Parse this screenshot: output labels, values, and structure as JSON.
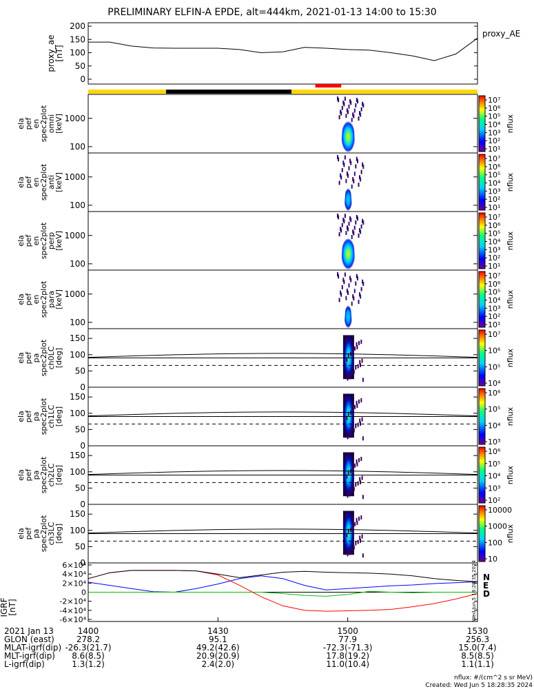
{
  "title": "PRELIMINARY ELFIN-A EPDE, alt=444km, 2021-01-13 14:00 to 15:30",
  "colors": {
    "sun_bar": "#ffd700",
    "shadow_bar": "#000000",
    "science_zone": "#ff0000",
    "bx": "#0000ff",
    "by": "#00c000",
    "bz": "#ff0000",
    "btot": "#000000"
  },
  "chart_data": [
    {
      "type": "line",
      "name": "proxy_ae",
      "ylabel": [
        "proxy_ae",
        "[nT]"
      ],
      "ylim": [
        0,
        200
      ],
      "yticks": [
        "0",
        "50",
        "100",
        "150",
        "200"
      ],
      "yticks_values": [
        0,
        50,
        100,
        150,
        200
      ],
      "legend": "proxy_AE",
      "x_minutes": [
        0,
        5,
        10,
        15,
        20,
        25,
        30,
        35,
        40,
        45,
        50,
        55,
        60,
        65,
        70,
        75,
        80,
        85,
        90
      ],
      "values": [
        140,
        140,
        125,
        118,
        117,
        117,
        117,
        112,
        100,
        103,
        120,
        117,
        112,
        110,
        100,
        88,
        70,
        95,
        155
      ]
    },
    {
      "type": "heatmap",
      "name": "omni",
      "ylabel": [
        "ela",
        "pef",
        "en",
        "spec2plot",
        "omni",
        "[keV]"
      ],
      "yticks": [
        "100",
        "1000"
      ],
      "colorbar_ticks": [
        "10⁷",
        "10⁶",
        "10⁵",
        "10⁴",
        "10³",
        "10²",
        "10¹"
      ],
      "colorbar_label": "nflux",
      "burst": {
        "t_start": 57.5,
        "t_end": 63.5,
        "peak": "1×10⁶",
        "energy_keV": [
          60,
          7000
        ]
      }
    },
    {
      "type": "heatmap",
      "name": "anti",
      "ylabel": [
        "ela",
        "pef",
        "en",
        "spec2plot",
        "anti",
        "[keV]"
      ],
      "yticks": [
        "100",
        "1000"
      ],
      "colorbar_ticks": [
        "10⁷",
        "10⁶",
        "10⁵",
        "10⁴",
        "10³",
        "10²",
        "10¹"
      ],
      "colorbar_label": "nflux",
      "burst": {
        "t_start": 57.5,
        "t_end": 63.5,
        "peak": "1×10⁵",
        "energy_keV": [
          60,
          7000
        ]
      }
    },
    {
      "type": "heatmap",
      "name": "perp",
      "ylabel": [
        "ela",
        "pef",
        "en",
        "spec2plot",
        "perp",
        "[keV]"
      ],
      "yticks": [
        "100",
        "1000"
      ],
      "colorbar_ticks": [
        "10⁷",
        "10⁶",
        "10⁵",
        "10⁴",
        "10³",
        "10²",
        "10¹"
      ],
      "colorbar_label": "nflux",
      "burst": {
        "t_start": 57.5,
        "t_end": 63.5,
        "peak": "1×10⁶",
        "energy_keV": [
          60,
          7000
        ]
      }
    },
    {
      "type": "heatmap",
      "name": "para",
      "ylabel": [
        "ela",
        "pef",
        "en",
        "spec2plot",
        "para",
        "[keV]"
      ],
      "yticks": [
        "100",
        "1000"
      ],
      "colorbar_ticks": [
        "10⁷",
        "10⁶",
        "10⁵",
        "10⁴",
        "10³",
        "10²",
        "10¹"
      ],
      "colorbar_label": "nflux",
      "burst": {
        "t_start": 57.5,
        "t_end": 63.5,
        "peak": "1×10⁵",
        "energy_keV": [
          60,
          7000
        ]
      }
    },
    {
      "type": "heatmap",
      "name": "ch0LC",
      "ylabel": [
        "ela",
        "pef",
        "pa",
        "spec2plot",
        "ch0LC",
        "[deg]"
      ],
      "yticks": [
        "0",
        "50",
        "100",
        "150"
      ],
      "colorbar_ticks": [
        "10⁷",
        "10⁶",
        "10⁵",
        "10⁴"
      ],
      "colorbar_label": "nflux",
      "burst": {
        "t_start": 57.5,
        "t_end": 63.5,
        "pa_range": [
          25,
          160
        ]
      }
    },
    {
      "type": "heatmap",
      "name": "ch1LC",
      "ylabel": [
        "ela",
        "pef",
        "pa",
        "spec2plot",
        "ch1LC",
        "[deg]"
      ],
      "yticks": [
        "0",
        "50",
        "100",
        "150"
      ],
      "colorbar_ticks": [
        "10⁶",
        "10⁵",
        "10⁴",
        "10³"
      ],
      "colorbar_label": "nflux",
      "burst": {
        "t_start": 57.5,
        "t_end": 63.5,
        "pa_range": [
          25,
          160
        ]
      }
    },
    {
      "type": "heatmap",
      "name": "ch2LC",
      "ylabel": [
        "ela",
        "pef",
        "pa",
        "spec2plot",
        "ch2LC",
        "[deg]"
      ],
      "yticks": [
        "0",
        "50",
        "100",
        "150"
      ],
      "colorbar_ticks": [
        "10⁶",
        "10⁵",
        "10⁴",
        "10³",
        "10²"
      ],
      "colorbar_label": "nflux",
      "burst": {
        "t_start": 57.5,
        "t_end": 63.5,
        "pa_range": [
          25,
          160
        ]
      }
    },
    {
      "type": "heatmap",
      "name": "ch3LC",
      "ylabel": [
        "ela",
        "pef",
        "pa",
        "spec2plot",
        "ch3LC",
        "[deg]"
      ],
      "yticks": [
        "0",
        "50",
        "100",
        "150"
      ],
      "colorbar_ticks": [
        "10000",
        "1000",
        "100",
        "10"
      ],
      "colorbar_label": "nflux",
      "burst": {
        "t_start": 57.5,
        "t_end": 63.5,
        "pa_range": [
          25,
          160
        ]
      }
    },
    {
      "type": "line",
      "name": "IGRF",
      "ylabel": [
        "IGRF",
        "[nT]"
      ],
      "ylim": [
        -60000,
        60000
      ],
      "yticks": [
        "-6×10⁴",
        "-4×10⁴",
        "-2×10⁴",
        "0",
        "2×10⁴",
        "4×10⁴",
        "6×10⁴"
      ],
      "yticks_values": [
        -60000,
        -40000,
        -20000,
        0,
        20000,
        40000,
        60000
      ],
      "legend": [
        "N",
        "E",
        "D"
      ],
      "x_minutes": [
        0,
        5,
        10,
        15,
        20,
        25,
        30,
        35,
        40,
        45,
        50,
        55,
        60,
        65,
        70,
        75,
        80,
        85,
        90
      ],
      "series": [
        {
          "name": "N",
          "color": "#0000ff",
          "values": [
            22000,
            15000,
            8000,
            1000,
            0,
            8000,
            18000,
            30000,
            36000,
            30000,
            15000,
            5000,
            8000,
            11000,
            14000,
            16000,
            19000,
            21000,
            23000
          ]
        },
        {
          "name": "E",
          "color": "#00c000",
          "values": [
            0,
            0,
            0,
            0,
            0,
            0,
            0,
            0,
            0,
            -3000,
            -7000,
            -9000,
            -5000,
            2000,
            0,
            -1000,
            0,
            0,
            0
          ]
        },
        {
          "name": "D",
          "color": "#ff0000",
          "values": [
            30000,
            43000,
            48000,
            48000,
            48000,
            47000,
            38000,
            15000,
            -10000,
            -30000,
            -40000,
            -42000,
            -41000,
            -40000,
            -38000,
            -32000,
            -25000,
            -15000,
            -3000
          ]
        },
        {
          "name": "",
          "color": "#000000",
          "values": [
            30000,
            43000,
            48000,
            48000,
            48000,
            47000,
            40000,
            32000,
            38000,
            44000,
            46000,
            44000,
            43000,
            42000,
            40000,
            36000,
            30000,
            26000,
            23000
          ]
        }
      ]
    }
  ],
  "orbit_bar": [
    {
      "t_start": 0,
      "t_end": 18,
      "kind": "sun"
    },
    {
      "t_start": 18,
      "t_end": 47,
      "kind": "shadow"
    },
    {
      "t_start": 47,
      "t_end": 90,
      "kind": "sun"
    }
  ],
  "science_zone": {
    "t_start": 52.5,
    "t_end": 58.5
  },
  "x_axis": {
    "date_label": "2021 Jan 13",
    "ticks_minutes": [
      0,
      30,
      60,
      90
    ],
    "tick_labels": [
      "1400",
      "1430",
      "1500",
      "1530"
    ],
    "rows": [
      {
        "label": "GLON (east)",
        "values": [
          "278.2",
          "95.1",
          "77.9",
          "256.3"
        ]
      },
      {
        "label": "MLAT-igrf(dip)",
        "values": [
          "-26.3(21.7)",
          "49.2(42.6)",
          "-72.3(-71.3)",
          "15.0(7.4)"
        ]
      },
      {
        "label": "MLT-igrf(dip)",
        "values": [
          "8.6(8.5)",
          "20.9(20.9)",
          "17.8(19.2)",
          "8.5(8.5)"
        ]
      },
      {
        "label": "L-igrf(dip)",
        "values": [
          "1.3(1.2)",
          "2.4(2.0)",
          "11.0(10.4)",
          "1.1(1.1)"
        ]
      }
    ]
  },
  "footer": {
    "units": "nflux: #/(cm^2 s sr MeV)",
    "created": "Created: Wed Jun  5 18:28:35 2024",
    "side_stamp": "Wed Jun  5 18:28:35 2024"
  }
}
